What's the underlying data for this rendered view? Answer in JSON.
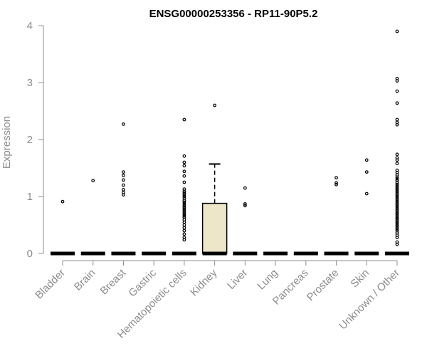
{
  "chart_data": {
    "type": "boxplot",
    "title": "ENSG00000253356 - RP11-90P5.2",
    "xlabel": "",
    "ylabel": "Expression",
    "ylim": [
      0,
      4
    ],
    "yticks": [
      "0",
      "1",
      "2",
      "3",
      "4"
    ],
    "categories": [
      "Bladder",
      "Brain",
      "Breast",
      "Gastric",
      "Hematopoietic cells",
      "Kidney",
      "Liver",
      "Lung",
      "Pancreas",
      "Prostate",
      "Skin",
      "Unknown / Other"
    ],
    "boxes": [
      {
        "category": "Bladder",
        "q1": 0,
        "median": 0,
        "q3": 0,
        "whisker_low": 0,
        "whisker_high": 0,
        "outliers": [
          0.91
        ]
      },
      {
        "category": "Brain",
        "q1": 0,
        "median": 0,
        "q3": 0,
        "whisker_low": 0,
        "whisker_high": 0,
        "outliers": [
          1.28
        ]
      },
      {
        "category": "Breast",
        "q1": 0,
        "median": 0,
        "q3": 0,
        "whisker_low": 0,
        "whisker_high": 0,
        "outliers": [
          2.27,
          1.43,
          1.37,
          1.29,
          1.2,
          1.12,
          1.07,
          1.03
        ]
      },
      {
        "category": "Gastric",
        "q1": 0,
        "median": 0,
        "q3": 0,
        "whisker_low": 0,
        "whisker_high": 0,
        "outliers": []
      },
      {
        "category": "Hematopoietic cells",
        "q1": 0,
        "median": 0,
        "q3": 0,
        "whisker_low": 0,
        "whisker_high": 0,
        "outliers": [
          2.35,
          1.71,
          1.6,
          1.54,
          1.44,
          1.36,
          1.25,
          1.13,
          1.09,
          1.06,
          1.03,
          1.0,
          0.97,
          0.93,
          0.9,
          0.87,
          0.84,
          0.81,
          0.78,
          0.75,
          0.72,
          0.69,
          0.66,
          0.63,
          0.59,
          0.55,
          0.5,
          0.45,
          0.4,
          0.34,
          0.28,
          0.24
        ]
      },
      {
        "category": "Kidney",
        "q1": 0,
        "median": 0,
        "q3": 0.88,
        "whisker_low": 0,
        "whisker_high": 1.57,
        "outliers": [
          2.6
        ]
      },
      {
        "category": "Liver",
        "q1": 0,
        "median": 0,
        "q3": 0,
        "whisker_low": 0,
        "whisker_high": 0,
        "outliers": [
          1.15,
          0.87,
          0.84
        ]
      },
      {
        "category": "Lung",
        "q1": 0,
        "median": 0,
        "q3": 0,
        "whisker_low": 0,
        "whisker_high": 0,
        "outliers": []
      },
      {
        "category": "Pancreas",
        "q1": 0,
        "median": 0,
        "q3": 0,
        "whisker_low": 0,
        "whisker_high": 0,
        "outliers": []
      },
      {
        "category": "Prostate",
        "q1": 0,
        "median": 0,
        "q3": 0,
        "whisker_low": 0,
        "whisker_high": 0,
        "outliers": [
          1.33,
          1.24,
          1.21
        ]
      },
      {
        "category": "Skin",
        "q1": 0,
        "median": 0,
        "q3": 0,
        "whisker_low": 0,
        "whisker_high": 0,
        "outliers": [
          1.64,
          1.43,
          1.05
        ]
      },
      {
        "category": "Unknown / Other",
        "q1": 0,
        "median": 0,
        "q3": 0,
        "whisker_low": 0,
        "whisker_high": 0,
        "outliers": [
          3.9,
          3.07,
          3.03,
          2.85,
          2.64,
          2.35,
          2.3,
          2.26,
          1.74,
          1.68,
          1.64,
          1.58,
          1.46,
          1.42,
          1.38,
          1.34,
          1.31,
          1.28,
          1.24,
          1.21,
          1.18,
          1.15,
          1.12,
          1.09,
          1.06,
          1.03,
          1.0,
          0.97,
          0.94,
          0.91,
          0.88,
          0.85,
          0.82,
          0.79,
          0.76,
          0.73,
          0.7,
          0.67,
          0.64,
          0.61,
          0.58,
          0.55,
          0.52,
          0.49,
          0.46,
          0.43,
          0.4,
          0.36,
          0.32,
          0.28,
          0.2,
          0.16
        ]
      }
    ],
    "grid": false,
    "legend": "none",
    "colors": {
      "box_fill": "#ede6c8",
      "box_stroke": "#000000",
      "axis": "#8c8c8c",
      "outlier": "#000000"
    }
  }
}
